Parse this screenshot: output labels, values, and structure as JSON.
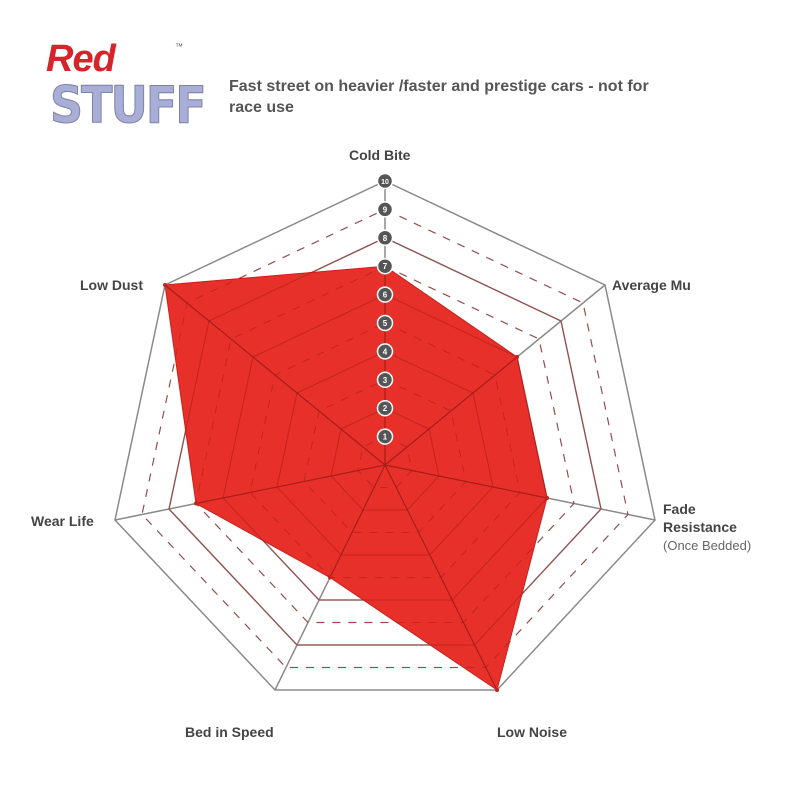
{
  "logo": {
    "line1": "Red",
    "line2": "STUFF",
    "tm": "™"
  },
  "chart_data": {
    "type": "radar",
    "title": "Fast street on heavier /faster and prestige cars - not for race use",
    "axes": [
      "Cold Bite",
      "Average Mu",
      "Fade Resistance",
      "Low Noise",
      "Bed in Speed",
      "Wear Life",
      "Low Dust"
    ],
    "axis_note": {
      "Fade Resistance": "(Once Bedded)"
    },
    "scale_ticks": [
      "1",
      "2",
      "3",
      "4",
      "5",
      "6",
      "7",
      "8",
      "9",
      "10"
    ],
    "range": [
      0,
      10
    ],
    "values": [
      7,
      6,
      6,
      10,
      5,
      7,
      10
    ],
    "fill_color": "#e8302a",
    "grid_color": "#8a8a8a",
    "badge_color": "#555555"
  }
}
